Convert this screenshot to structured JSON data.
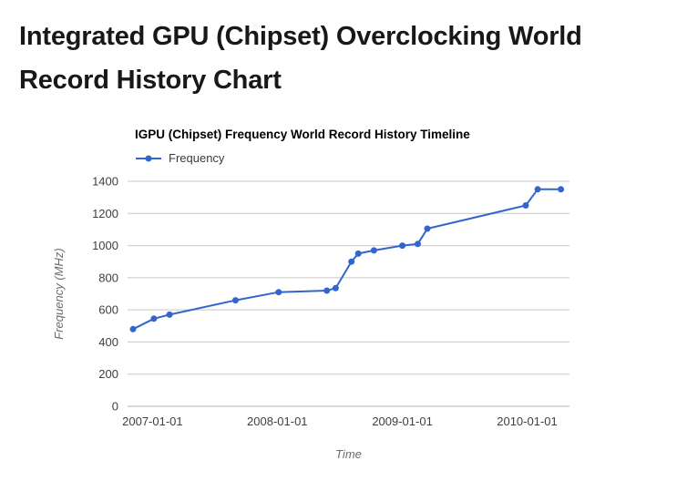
{
  "page": {
    "title": "Integrated GPU (Chipset) Overclocking World Record History Chart"
  },
  "chart": {
    "title": "IGPU (Chipset) Frequency World Record History Timeline",
    "legend_label": "Frequency"
  },
  "chart_data": {
    "type": "line",
    "title": "IGPU (Chipset) Frequency World Record History Timeline",
    "xlabel": "Time",
    "ylabel": "Frequency (MHz)",
    "legend": [
      "Frequency"
    ],
    "legend_position": "top-left",
    "grid": true,
    "line_color": "#3366cc",
    "grid_color": "#c8c8c8",
    "baseline_color": "#b5b5b5",
    "ylim": [
      0,
      1400
    ],
    "y_ticks": [
      0,
      200,
      400,
      600,
      800,
      1000,
      1200,
      1400
    ],
    "x_ticks": [
      "2007-01-01",
      "2008-01-01",
      "2009-01-01",
      "2010-01-01"
    ],
    "x_domain": [
      "2006-10-20",
      "2010-05-05"
    ],
    "series": [
      {
        "name": "Frequency",
        "points": [
          {
            "x": "2006-11-05",
            "y": 480
          },
          {
            "x": "2007-01-05",
            "y": 545
          },
          {
            "x": "2007-02-20",
            "y": 570
          },
          {
            "x": "2007-09-01",
            "y": 660
          },
          {
            "x": "2008-01-05",
            "y": 710
          },
          {
            "x": "2008-05-25",
            "y": 720
          },
          {
            "x": "2008-06-20",
            "y": 735
          },
          {
            "x": "2008-08-05",
            "y": 900
          },
          {
            "x": "2008-08-25",
            "y": 950
          },
          {
            "x": "2008-10-10",
            "y": 970
          },
          {
            "x": "2009-01-01",
            "y": 1000
          },
          {
            "x": "2009-02-15",
            "y": 1010
          },
          {
            "x": "2009-03-15",
            "y": 1105
          },
          {
            "x": "2009-12-28",
            "y": 1250
          },
          {
            "x": "2010-02-01",
            "y": 1350
          },
          {
            "x": "2010-04-10",
            "y": 1350
          }
        ]
      }
    ]
  }
}
